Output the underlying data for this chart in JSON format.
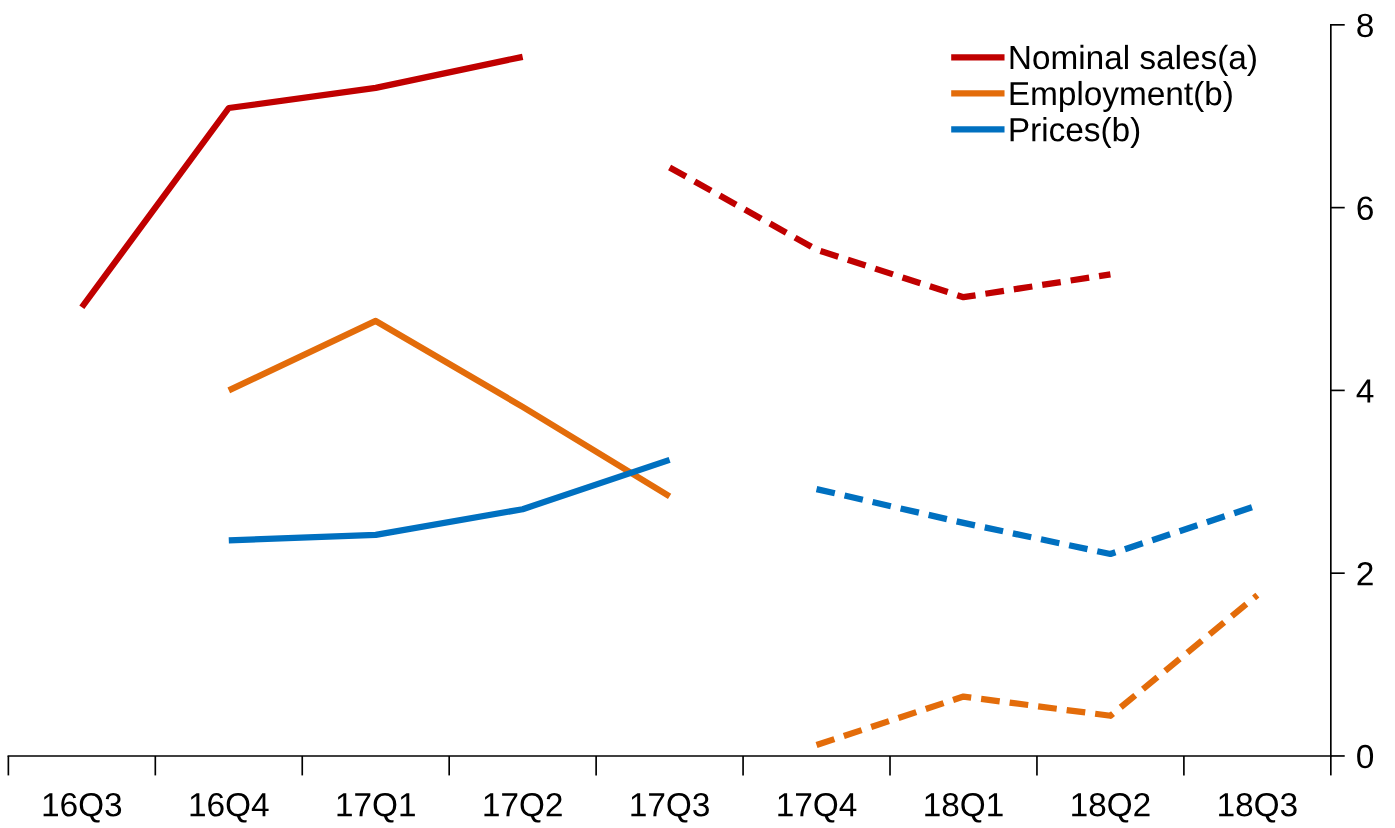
{
  "chart_data": {
    "type": "line",
    "categories": [
      "16Q3",
      "16Q4",
      "17Q1",
      "17Q2",
      "17Q3",
      "17Q4",
      "18Q1",
      "18Q2",
      "18Q3"
    ],
    "series": [
      {
        "name": "Nominal sales(a)",
        "color": "#c00000",
        "line_style": "solid",
        "values": [
          4.91,
          7.09,
          7.31,
          7.65,
          null,
          null,
          null,
          null,
          null
        ]
      },
      {
        "name": "Employment(b)",
        "color": "#e36c0a",
        "line_style": "solid",
        "values": [
          null,
          4.0,
          4.76,
          3.82,
          2.84,
          null,
          null,
          null,
          null
        ]
      },
      {
        "name": "Prices(b)",
        "color": "#0070c0",
        "line_style": "solid",
        "values": [
          null,
          2.36,
          2.42,
          2.7,
          3.24,
          null,
          null,
          null,
          null
        ]
      },
      {
        "color": "#c00000",
        "line_style": "dashed",
        "values": [
          null,
          null,
          null,
          null,
          6.44,
          5.54,
          5.02,
          5.27,
          null
        ]
      },
      {
        "color": "#e36c0a",
        "line_style": "dashed",
        "values": [
          null,
          null,
          null,
          null,
          null,
          0.12,
          0.65,
          0.44,
          1.76
        ]
      },
      {
        "color": "#0070c0",
        "line_style": "dashed",
        "values": [
          null,
          null,
          null,
          null,
          null,
          2.92,
          2.55,
          2.21,
          2.74
        ]
      }
    ],
    "ylim": [
      0,
      8
    ],
    "yticks": [
      0,
      2,
      4,
      6,
      8
    ],
    "grid": false,
    "legend": "top right",
    "marker": "none"
  }
}
